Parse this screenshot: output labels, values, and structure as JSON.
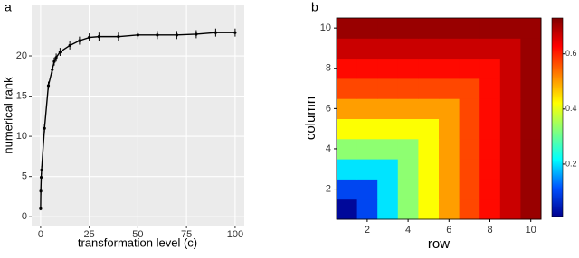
{
  "chart_data": [
    {
      "type": "line",
      "panel_label": "a",
      "x_label": "transformation level (c)",
      "y_label": "numerical rank",
      "x": [
        0,
        0.1,
        0.3,
        0.5,
        2,
        4,
        6,
        7,
        8,
        10,
        15,
        20,
        25,
        30,
        40,
        50,
        60,
        70,
        80,
        90,
        100
      ],
      "y": [
        1,
        3.2,
        4.9,
        5.8,
        11,
        16.3,
        18.3,
        19.3,
        19.8,
        20.5,
        21.3,
        21.9,
        22.3,
        22.4,
        22.4,
        22.6,
        22.6,
        22.6,
        22.7,
        22.9,
        22.9
      ],
      "errors": [
        0.2,
        0.5,
        0.5,
        0.5,
        0.5,
        0.5,
        0.5,
        0.5,
        0.5,
        0.5,
        0.5,
        0.5,
        0.5,
        0.5,
        0.5,
        0.5,
        0.5,
        0.5,
        0.5,
        0.5,
        0.5
      ],
      "color": "#000000",
      "xlim": [
        -4.6,
        104.7
      ],
      "ylim": [
        -1.1,
        26.4
      ],
      "xticks": [
        0,
        25,
        50,
        75,
        100
      ],
      "yticks": [
        0,
        5,
        10,
        15,
        20
      ],
      "grid": true
    },
    {
      "type": "heatmap",
      "panel_label": "b",
      "x_label": "row",
      "y_label": "column",
      "x": [
        1,
        2,
        3,
        4,
        5,
        6,
        7,
        8,
        9,
        10
      ],
      "y": [
        1,
        2,
        3,
        4,
        5,
        6,
        7,
        8,
        9,
        10
      ],
      "z": [
        [
          0.02,
          0.1,
          0.2,
          0.33,
          0.42,
          0.5,
          0.57,
          0.62,
          0.67,
          0.71
        ],
        [
          0.1,
          0.1,
          0.2,
          0.33,
          0.42,
          0.5,
          0.57,
          0.62,
          0.67,
          0.71
        ],
        [
          0.2,
          0.2,
          0.2,
          0.33,
          0.42,
          0.5,
          0.57,
          0.62,
          0.67,
          0.71
        ],
        [
          0.33,
          0.33,
          0.33,
          0.33,
          0.42,
          0.5,
          0.57,
          0.62,
          0.67,
          0.71
        ],
        [
          0.42,
          0.42,
          0.42,
          0.42,
          0.42,
          0.5,
          0.57,
          0.62,
          0.67,
          0.71
        ],
        [
          0.5,
          0.5,
          0.5,
          0.5,
          0.5,
          0.5,
          0.57,
          0.62,
          0.67,
          0.71
        ],
        [
          0.57,
          0.57,
          0.57,
          0.57,
          0.57,
          0.57,
          0.57,
          0.62,
          0.67,
          0.71
        ],
        [
          0.62,
          0.62,
          0.62,
          0.62,
          0.62,
          0.62,
          0.62,
          0.62,
          0.67,
          0.71
        ],
        [
          0.67,
          0.67,
          0.67,
          0.67,
          0.67,
          0.67,
          0.67,
          0.67,
          0.67,
          0.71
        ],
        [
          0.71,
          0.71,
          0.71,
          0.71,
          0.71,
          0.71,
          0.71,
          0.71,
          0.71,
          0.71
        ]
      ],
      "xlim": [
        0.5,
        10.5
      ],
      "ylim": [
        0.5,
        10.5
      ],
      "xticks": [
        2,
        4,
        6,
        8,
        10
      ],
      "yticks": [
        2,
        4,
        6,
        8,
        10
      ],
      "colorscale": [
        "#00008f",
        "#0050ff",
        "#00ffff",
        "#80ff7f",
        "#ffff00",
        "#ff8000",
        "#ff0000",
        "#800000"
      ],
      "clim": [
        0.01,
        0.73
      ],
      "colorbar_ticks": [
        0.2,
        0.4,
        0.6
      ]
    }
  ]
}
